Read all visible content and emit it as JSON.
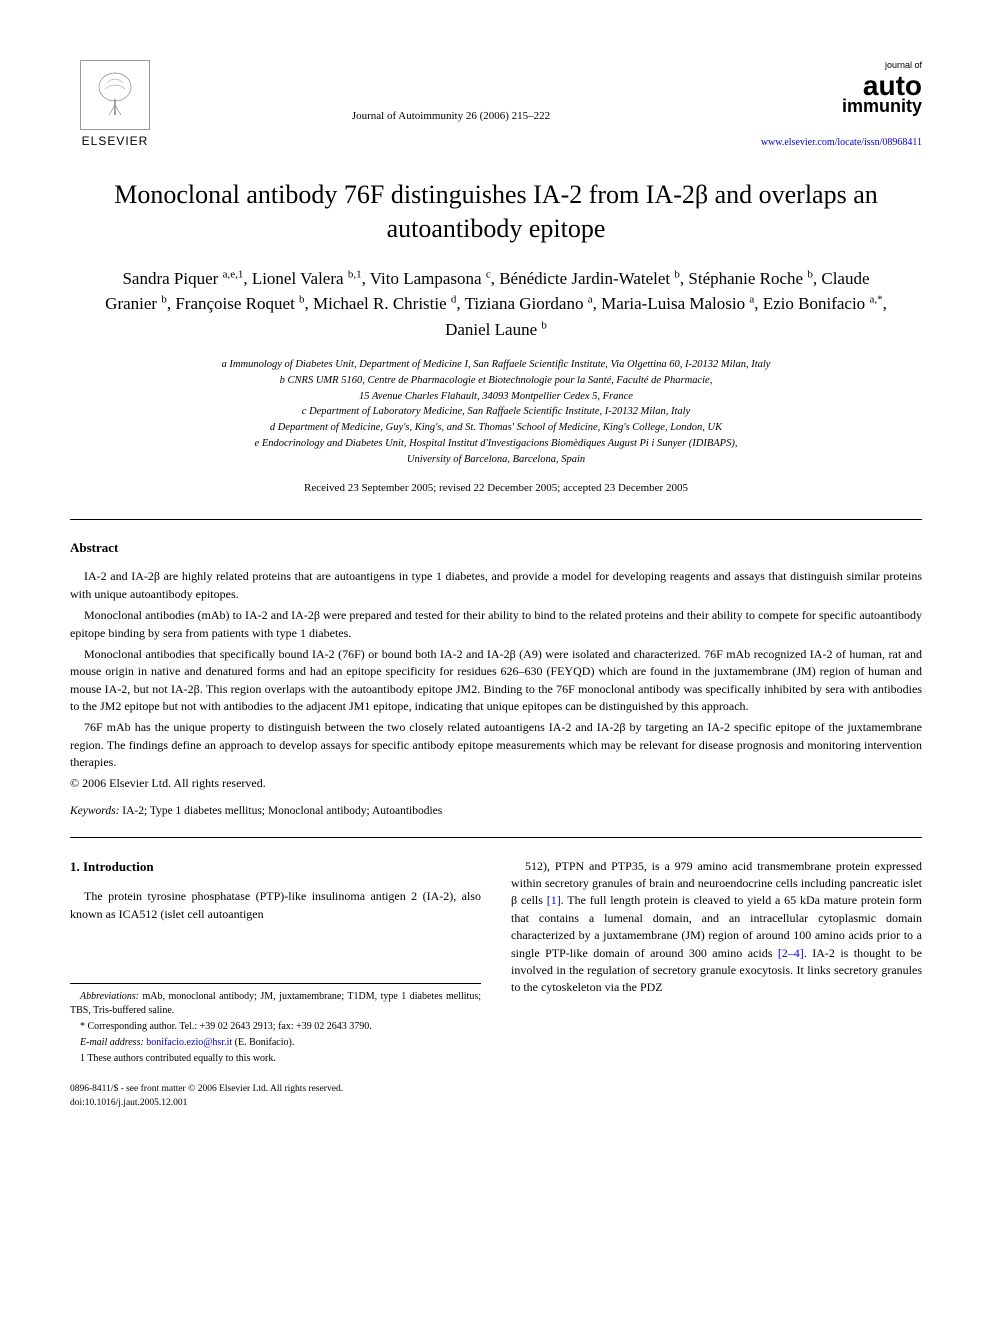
{
  "header": {
    "publisher": "ELSEVIER",
    "journal_ref": "Journal of Autoimmunity 26 (2006) 215–222",
    "journal_logo_small": "journal of",
    "journal_logo_main1": "auto",
    "journal_logo_main2": "immunity",
    "journal_url": "www.elsevier.com/locate/issn/08968411"
  },
  "title": "Monoclonal antibody 76F distinguishes IA-2 from IA-2β and overlaps an autoantibody epitope",
  "authors_html": "Sandra Piquer <sup>a,e,1</sup>, Lionel Valera <sup>b,1</sup>, Vito Lampasona <sup>c</sup>, Bénédicte Jardin-Watelet <sup>b</sup>, Stéphanie Roche <sup>b</sup>, Claude Granier <sup>b</sup>, Françoise Roquet <sup>b</sup>, Michael R. Christie <sup>d</sup>, Tiziana Giordano <sup>a</sup>, Maria-Luisa Malosio <sup>a</sup>, Ezio Bonifacio <sup>a,*</sup>, Daniel Laune <sup>b</sup>",
  "affiliations": {
    "a": "a Immunology of Diabetes Unit, Department of Medicine I, San Raffaele Scientific Institute, Via Olgettina 60, I-20132 Milan, Italy",
    "b": "b CNRS UMR 5160, Centre de Pharmacologie et Biotechnologie pour la Santé, Faculté de Pharmacie,",
    "b2": "15 Avenue Charles Flahault, 34093 Montpellier Cedex 5, France",
    "c": "c Department of Laboratory Medicine, San Raffaele Scientific Institute, I-20132 Milan, Italy",
    "d": "d Department of Medicine, Guy's, King's, and St. Thomas' School of Medicine, King's College, London, UK",
    "e": "e Endocrinology and Diabetes Unit, Hospital Institut d'Investigacions Biomèdiques August Pi i Sunyer (IDIBAPS),",
    "e2": "University of Barcelona, Barcelona, Spain"
  },
  "dates": "Received 23 September 2005; revised 22 December 2005; accepted 23 December 2005",
  "abstract": {
    "heading": "Abstract",
    "p1": "IA-2 and IA-2β are highly related proteins that are autoantigens in type 1 diabetes, and provide a model for developing reagents and assays that distinguish similar proteins with unique autoantibody epitopes.",
    "p2": "Monoclonal antibodies (mAb) to IA-2 and IA-2β were prepared and tested for their ability to bind to the related proteins and their ability to compete for specific autoantibody epitope binding by sera from patients with type 1 diabetes.",
    "p3": "Monoclonal antibodies that specifically bound IA-2 (76F) or bound both IA-2 and IA-2β (A9) were isolated and characterized. 76F mAb recognized IA-2 of human, rat and mouse origin in native and denatured forms and had an epitope specificity for residues 626–630 (FEYQD) which are found in the juxtamembrane (JM) region of human and mouse IA-2, but not IA-2β. This region overlaps with the autoantibody epitope JM2. Binding to the 76F monoclonal antibody was specifically inhibited by sera with antibodies to the JM2 epitope but not with antibodies to the adjacent JM1 epitope, indicating that unique epitopes can be distinguished by this approach.",
    "p4": "76F mAb has the unique property to distinguish between the two closely related autoantigens IA-2 and IA-2β by targeting an IA-2 specific epitope of the juxtamembrane region. The findings define an approach to develop assays for specific antibody epitope measurements which may be relevant for disease prognosis and monitoring intervention therapies.",
    "copyright": "© 2006 Elsevier Ltd. All rights reserved."
  },
  "keywords": {
    "label": "Keywords:",
    "text": " IA-2; Type 1 diabetes mellitus; Monoclonal antibody; Autoantibodies"
  },
  "intro": {
    "heading": "1. Introduction",
    "col1": "The protein tyrosine phosphatase (PTP)-like insulinoma antigen 2 (IA-2), also known as ICA512 (islet cell autoantigen",
    "col2": "512), PTPN and PTP35, is a 979 amino acid transmembrane protein expressed within secretory granules of brain and neuroendocrine cells including pancreatic islet β cells [1]. The full length protein is cleaved to yield a 65 kDa mature protein form that contains a lumenal domain, and an intracellular cytoplasmic domain characterized by a juxtamembrane (JM) region of around 100 amino acids prior to a single PTP-like domain of around 300 amino acids [2–4]. IA-2 is thought to be involved in the regulation of secretory granule exocytosis. It links secretory granules to the cytoskeleton via the PDZ"
  },
  "footnotes": {
    "abbrev_label": "Abbreviations:",
    "abbrev_text": " mAb, monoclonal antibody; JM, juxtamembrane; T1DM, type 1 diabetes mellitus; TBS, Tris-buffered saline.",
    "corr": "* Corresponding author. Tel.: +39 02 2643 2913; fax: +39 02 2643 3790.",
    "email_label": "E-mail address:",
    "email": "bonifacio.ezio@hsr.it",
    "email_author": " (E. Bonifacio).",
    "equal": "1 These authors contributed equally to this work."
  },
  "footer": {
    "line1": "0896-8411/$ - see front matter © 2006 Elsevier Ltd. All rights reserved.",
    "line2": "doi:10.1016/j.jaut.2005.12.001"
  },
  "colors": {
    "text": "#000000",
    "link": "#0000cc",
    "background": "#ffffff"
  }
}
